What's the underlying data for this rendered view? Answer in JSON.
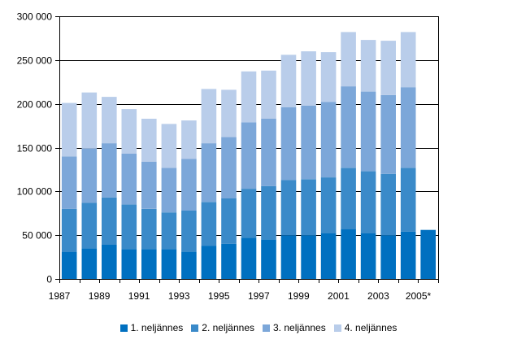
{
  "chart_data": {
    "type": "bar",
    "stacked": true,
    "title": "",
    "xlabel": "",
    "ylabel": "",
    "ylim": [
      0,
      300000
    ],
    "yticks": [
      0,
      50000,
      100000,
      150000,
      200000,
      250000,
      300000
    ],
    "ytick_labels": [
      "0",
      "50 000",
      "100 000",
      "150 000",
      "200 000",
      "250 000",
      "300 000"
    ],
    "grid": true,
    "legend_position": "bottom",
    "categories": [
      "1987",
      "1988",
      "1989",
      "1990",
      "1991",
      "1992",
      "1993",
      "1994",
      "1995",
      "1996",
      "1997",
      "1998",
      "1999",
      "2000",
      "2001",
      "2002",
      "2003",
      "2004",
      "2005*"
    ],
    "xtick_labels": [
      "1987",
      "",
      "1989",
      "",
      "1991",
      "",
      "1993",
      "",
      "1995",
      "",
      "1997",
      "",
      "1999",
      "",
      "2001",
      "",
      "2003",
      "",
      "2005*"
    ],
    "series": [
      {
        "name": "1. neljännes",
        "color": "#0070c0",
        "values": [
          31000,
          35000,
          39000,
          34000,
          34000,
          34000,
          31000,
          38000,
          40000,
          47000,
          45000,
          50000,
          50000,
          52000,
          57000,
          52000,
          50000,
          54000,
          56000
        ]
      },
      {
        "name": "2. neljännes",
        "color": "#3a8ac9",
        "values": [
          49000,
          52000,
          54000,
          51000,
          46000,
          42000,
          47000,
          50000,
          52000,
          56000,
          61000,
          63000,
          64000,
          64000,
          70000,
          71000,
          70000,
          73000,
          0
        ]
      },
      {
        "name": "3. neljännes",
        "color": "#7ca7d9",
        "values": [
          60000,
          62000,
          62000,
          58000,
          54000,
          51000,
          59000,
          67000,
          70000,
          76000,
          77000,
          83000,
          84000,
          86000,
          93000,
          91000,
          90000,
          92000,
          0
        ]
      },
      {
        "name": "4. neljännes",
        "color": "#b9cdea",
        "values": [
          61000,
          64000,
          53000,
          51000,
          49000,
          50000,
          44000,
          62000,
          54000,
          58000,
          55000,
          60000,
          62000,
          57000,
          62000,
          59000,
          62000,
          63000,
          0
        ]
      }
    ]
  }
}
